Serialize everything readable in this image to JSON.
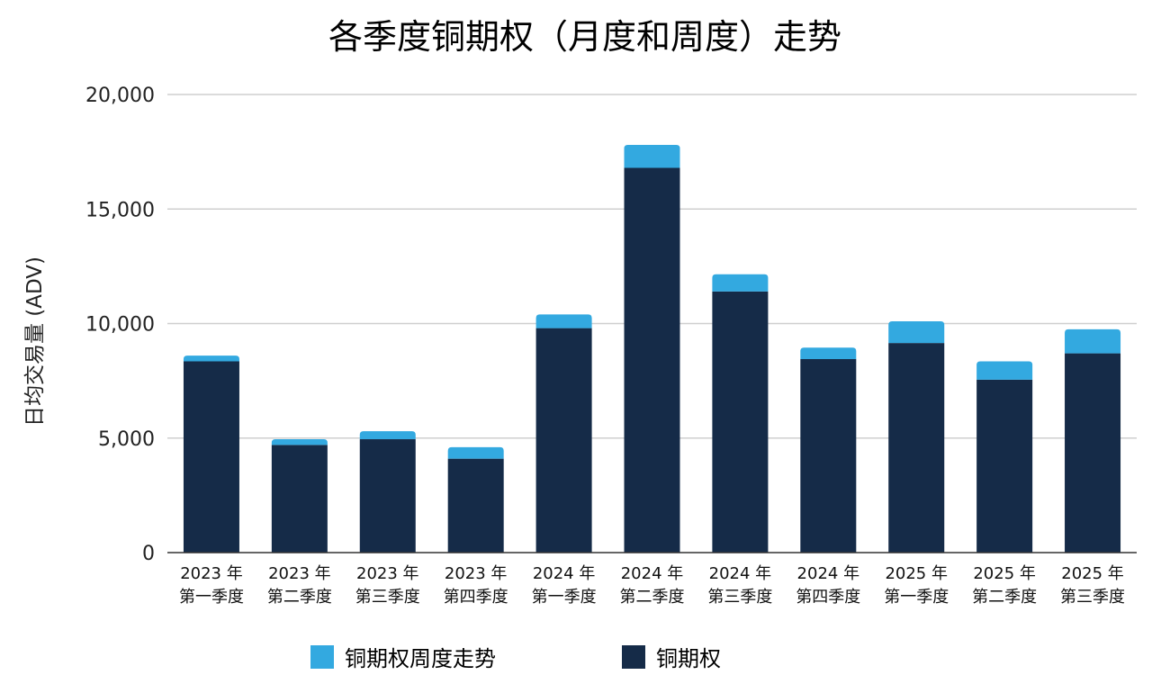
{
  "chart_data": {
    "type": "bar",
    "stacked": true,
    "title": "各季度铜期权（月度和周度）走势",
    "ylabel": "日均交易量 (ADV)",
    "xlabel": "",
    "ylim": [
      0,
      20000
    ],
    "yticks": [
      "0",
      "5,000",
      "10,000",
      "15,000",
      "20,000"
    ],
    "ytick_values": [
      0,
      5000,
      10000,
      15000,
      20000
    ],
    "grid": true,
    "legend_position": "bottom",
    "categories": [
      [
        "2023 年",
        "第一季度"
      ],
      [
        "2023 年",
        "第二季度"
      ],
      [
        "2023 年",
        "第三季度"
      ],
      [
        "2023 年",
        "第四季度"
      ],
      [
        "2024 年",
        "第一季度"
      ],
      [
        "2024 年",
        "第二季度"
      ],
      [
        "2024 年",
        "第三季度"
      ],
      [
        "2024 年",
        "第四季度"
      ],
      [
        "2025 年",
        "第一季度"
      ],
      [
        "2025 年",
        "第二季度"
      ],
      [
        "2025 年",
        "第三季度"
      ]
    ],
    "series": [
      {
        "name": "铜期权",
        "color": "#152b48",
        "values": [
          8350,
          4700,
          4950,
          4100,
          9800,
          16800,
          11400,
          8450,
          9150,
          7550,
          8700
        ]
      },
      {
        "name": "铜期权周度走势",
        "color": "#33a9e0",
        "values": [
          250,
          250,
          350,
          500,
          600,
          1000,
          750,
          500,
          950,
          800,
          1050
        ]
      }
    ],
    "legend_order": [
      1,
      0
    ]
  }
}
